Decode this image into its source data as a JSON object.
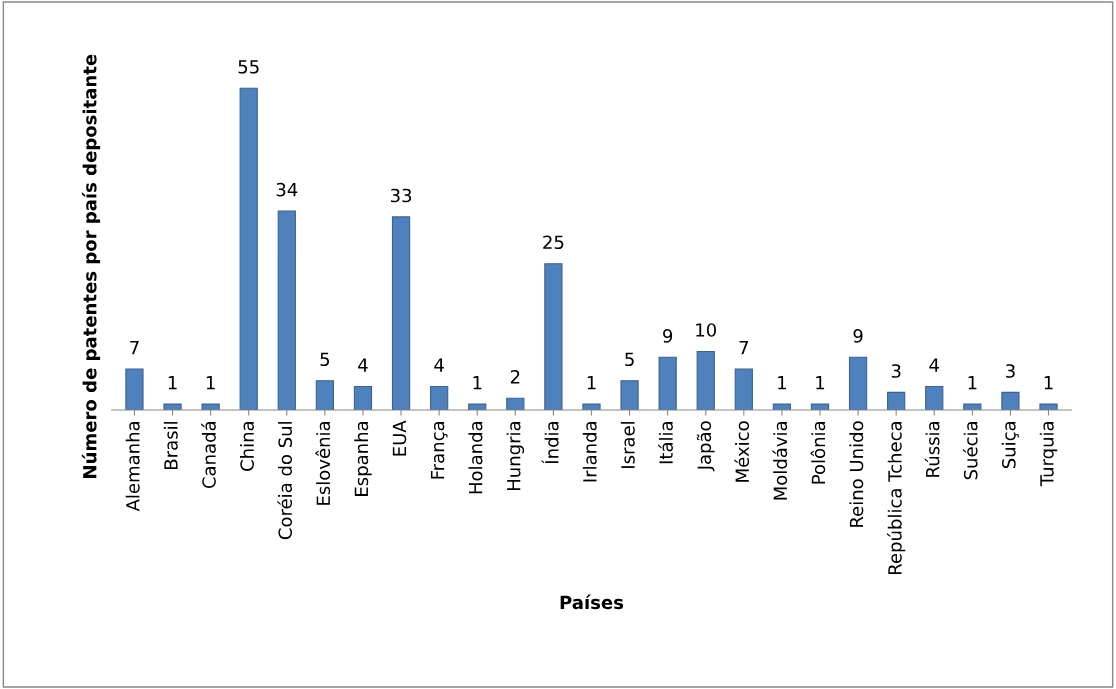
{
  "chart_data": {
    "type": "bar",
    "xlabel": "Países",
    "ylabel": "Número de patentes por país depositante",
    "categories": [
      "Alemanha",
      "Brasil",
      "Canadá",
      "China",
      "Coréia do Sul",
      "Eslovênia",
      "Espanha",
      "EUA",
      "França",
      "Holanda",
      "Hungria",
      "Índia",
      "Irlanda",
      "Israel",
      "Itália",
      "Japão",
      "México",
      "Moldávia",
      "Polônia",
      "Reino Unido",
      "República Tcheca",
      "Rússia",
      "Suécia",
      "Suiça",
      "Turquia"
    ],
    "values": [
      7,
      1,
      1,
      55,
      34,
      5,
      4,
      33,
      4,
      1,
      2,
      25,
      1,
      5,
      9,
      10,
      7,
      1,
      1,
      9,
      3,
      4,
      1,
      3,
      1
    ],
    "color": "#4f81bd",
    "data_labels": true,
    "grid": false,
    "legend": false
  }
}
